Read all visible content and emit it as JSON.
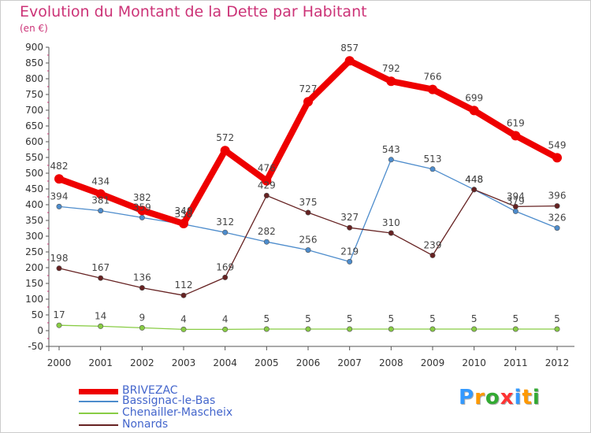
{
  "title": "Evolution du Montant de la Dette par Habitant",
  "subtitle": "(en €)",
  "logo": {
    "letters": [
      "P",
      "r",
      "o",
      "x",
      "i",
      "t",
      "i"
    ],
    "colors": [
      "#3399ff",
      "#ff9900",
      "#33aa33",
      "#ff3333",
      "#3399ff",
      "#ff9900",
      "#33aa33"
    ]
  },
  "chart_data": {
    "type": "line",
    "x": [
      "2000",
      "2001",
      "2002",
      "2003",
      "2004",
      "2005",
      "2006",
      "2007",
      "2008",
      "2009",
      "2010",
      "2011",
      "2012"
    ],
    "ylim": [
      -50,
      900
    ],
    "yticks": [
      -50,
      0,
      50,
      100,
      150,
      200,
      250,
      300,
      350,
      400,
      450,
      500,
      550,
      600,
      650,
      700,
      750,
      800,
      850,
      900
    ],
    "grid": false,
    "legend_position": "bottom-left",
    "series": [
      {
        "name": "BRIVEZAC",
        "color": "#ee0000",
        "values": [
          482,
          434,
          382,
          340,
          572,
          476,
          727,
          857,
          792,
          766,
          699,
          619,
          549
        ]
      },
      {
        "name": "Bassignac-le-Bas",
        "color": "#4d8ccc",
        "values": [
          394,
          381,
          359,
          338,
          312,
          282,
          256,
          219,
          543,
          513,
          448,
          379,
          326
        ]
      },
      {
        "name": "Chenailler-Mascheix",
        "color": "#88cc44",
        "values": [
          17,
          14,
          9,
          4,
          4,
          5,
          5,
          5,
          5,
          5,
          5,
          5,
          5
        ]
      },
      {
        "name": "Nonards",
        "color": "#662222",
        "values": [
          198,
          167,
          136,
          112,
          169,
          429,
          375,
          327,
          310,
          239,
          448,
          394,
          396
        ]
      }
    ]
  }
}
